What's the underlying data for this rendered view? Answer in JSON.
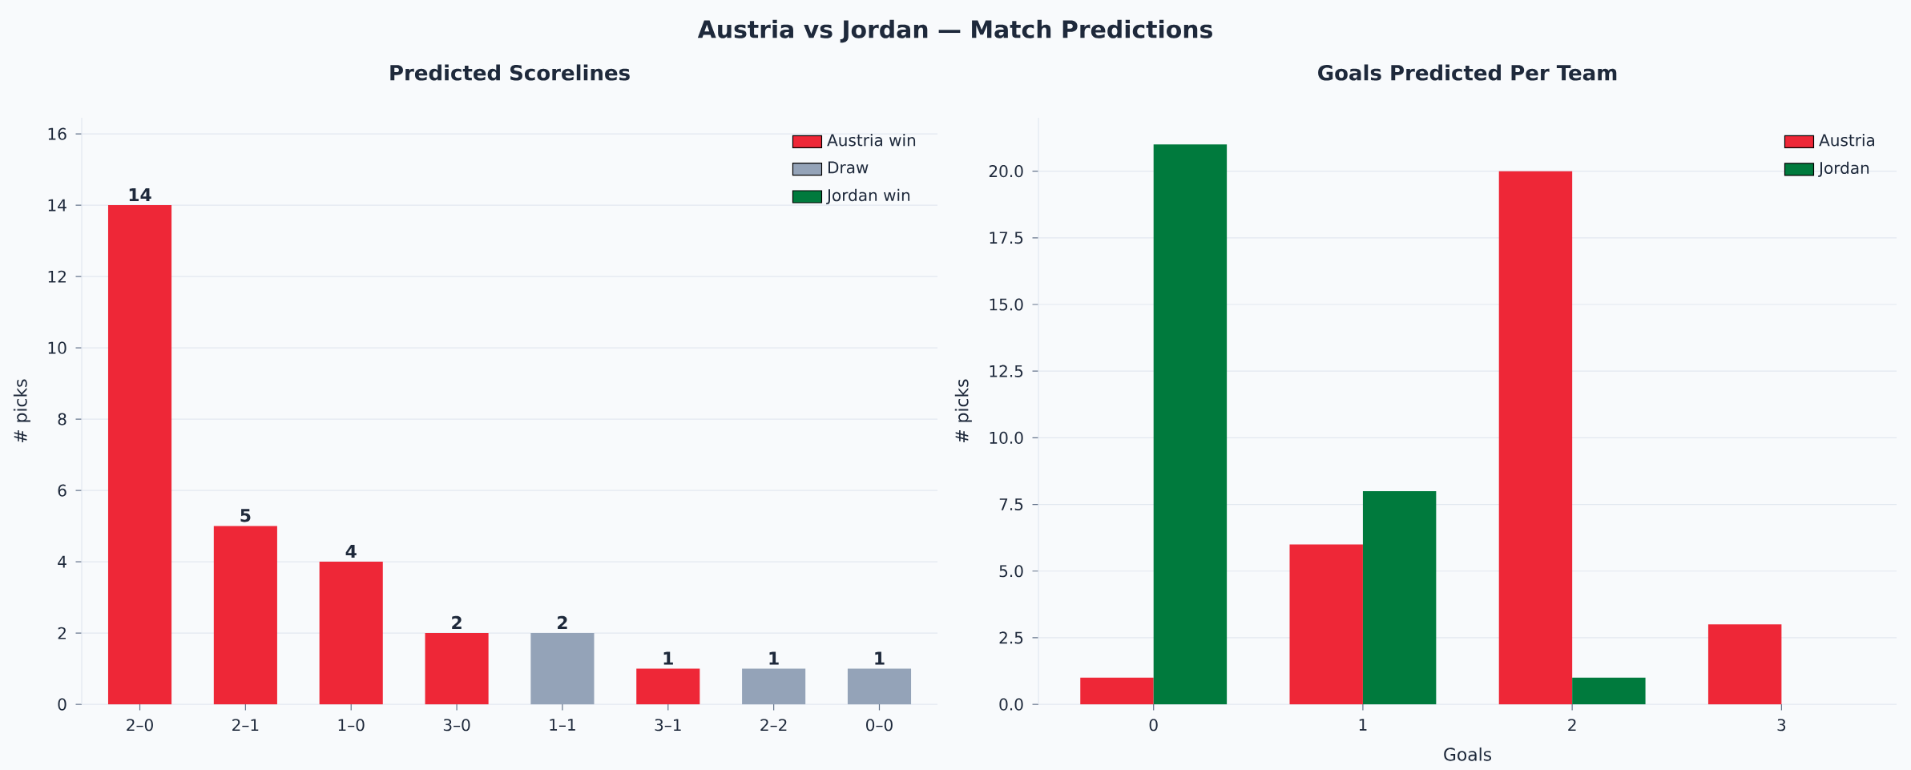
{
  "chart_data": [
    {
      "type": "bar",
      "title": "Austria vs Jordan  —  Match Predictions",
      "subtitle": "Predicted Scorelines",
      "ylabel": "# picks",
      "categories": [
        "2–0",
        "2–1",
        "1–0",
        "3–0",
        "1–1",
        "3–1",
        "2–2",
        "0–0"
      ],
      "stacked": true,
      "data_labels": true,
      "series": [
        {
          "name": "Austria win",
          "color": "#ee2737",
          "values": [
            14,
            5,
            4,
            2,
            null,
            1,
            null,
            null
          ]
        },
        {
          "name": "Draw",
          "color": "#94a3b8",
          "values": [
            null,
            null,
            null,
            null,
            2,
            null,
            1,
            1
          ]
        },
        {
          "name": "Jordan win",
          "color": "#007a3d",
          "values": [
            null,
            null,
            null,
            null,
            null,
            null,
            null,
            null
          ]
        }
      ],
      "ylim": [
        0,
        16.45
      ],
      "yticks": [
        0,
        2,
        4,
        6,
        8,
        10,
        12,
        14,
        16
      ],
      "grid": "y",
      "legend": "top right"
    },
    {
      "type": "bar",
      "title": "Goals Predicted Per Team",
      "xlabel": "Goals",
      "ylabel": "# picks",
      "categories": [
        "0",
        "1",
        "2",
        "3"
      ],
      "series": [
        {
          "name": "Austria",
          "color": "#ee2737",
          "values": [
            1,
            6,
            20,
            3
          ]
        },
        {
          "name": "Jordan",
          "color": "#007a3d",
          "values": [
            21,
            8,
            1,
            0
          ]
        }
      ],
      "ylim": [
        0,
        22
      ],
      "yticks": [
        {
          "value": 0,
          "label": "0.0"
        },
        {
          "value": 2.5,
          "label": "2.5"
        },
        {
          "value": 5,
          "label": "5.0"
        },
        {
          "value": 7.5,
          "label": "7.5"
        },
        {
          "value": 10,
          "label": "10.0"
        },
        {
          "value": 12.5,
          "label": "12.5"
        },
        {
          "value": 15,
          "label": "15.0"
        },
        {
          "value": 17.5,
          "label": "17.5"
        },
        {
          "value": 20,
          "label": "20.0"
        }
      ],
      "grid": "y",
      "legend": "top right"
    }
  ]
}
